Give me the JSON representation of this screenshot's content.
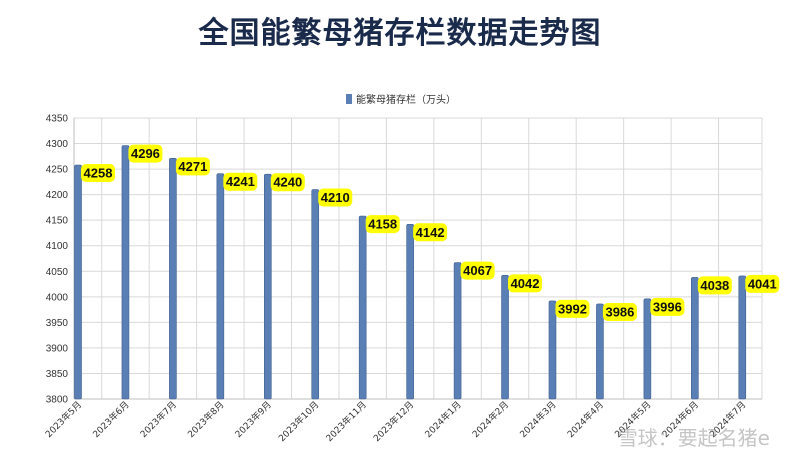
{
  "title": "全国能繁母猪存栏数据走势图",
  "watermark": "雪球：要起名猪e",
  "colors": {
    "bar": "#5a7fb5",
    "bar_dark": "#3f5f8f",
    "label_bg": "#ffff00",
    "grid": "#d9d9d9"
  },
  "chart_data": {
    "type": "bar",
    "title": "全国能繁母猪存栏数据走势图",
    "legend": {
      "entries": [
        "能繁母猪存栏（万头）"
      ],
      "placement": "top-center"
    },
    "series": [
      {
        "name": "能繁母猪存栏（万头）",
        "values": [
          4258,
          4296,
          4271,
          4241,
          4240,
          4210,
          4158,
          4142,
          4067,
          4042,
          3992,
          3986,
          3996,
          4038,
          4041
        ]
      }
    ],
    "categories": [
      "2023年5月",
      "2023年6月",
      "2023年7月",
      "2023年8月",
      "2023年9月",
      "2023年10月",
      "2023年11月",
      "2023年12月",
      "2024年1月",
      "2024年2月",
      "2024年3月",
      "2024年4月",
      "2024年5月",
      "2024年6月",
      "2024年7月"
    ],
    "ylim": [
      3800,
      4350
    ],
    "yticks": [
      3800,
      3850,
      3900,
      3950,
      4000,
      4050,
      4100,
      4150,
      4200,
      4250,
      4300,
      4350
    ],
    "grid": true,
    "data_labels": true
  }
}
